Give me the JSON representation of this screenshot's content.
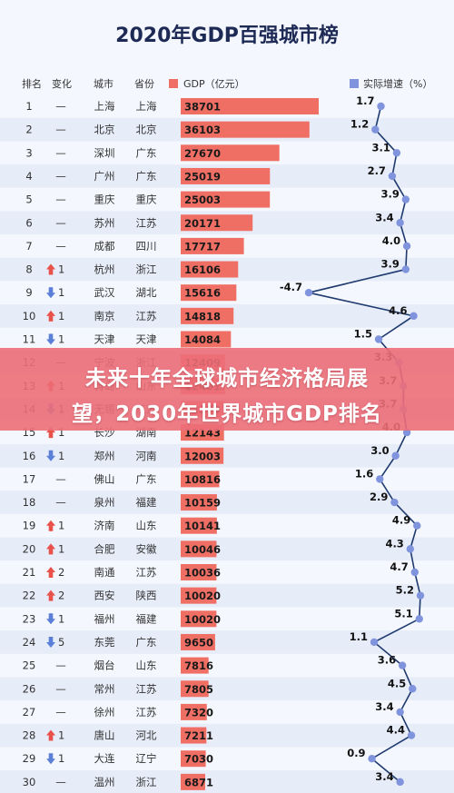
{
  "chart_data": {
    "type": "table",
    "title": "2020年GDP百强城市榜",
    "headers": {
      "rank": "排名",
      "change": "变化",
      "city": "城市",
      "province": "省份"
    },
    "legend": [
      {
        "name": "GDP（亿元）",
        "color": "#f06f64",
        "marker": "square"
      },
      {
        "name": "实际增速（%）",
        "color": "#8093dd",
        "marker": "square"
      }
    ],
    "rows": [
      {
        "rank": "1",
        "dir": "",
        "change": "—",
        "city": "上海",
        "province": "上海",
        "gdp": 38701,
        "growth": 1.7
      },
      {
        "rank": "2",
        "dir": "",
        "change": "—",
        "city": "北京",
        "province": "北京",
        "gdp": 36103,
        "growth": 1.2
      },
      {
        "rank": "3",
        "dir": "",
        "change": "—",
        "city": "深圳",
        "province": "广东",
        "gdp": 27670,
        "growth": 3.1
      },
      {
        "rank": "4",
        "dir": "",
        "change": "—",
        "city": "广州",
        "province": "广东",
        "gdp": 25019,
        "growth": 2.7
      },
      {
        "rank": "5",
        "dir": "",
        "change": "—",
        "city": "重庆",
        "province": "重庆",
        "gdp": 25003,
        "growth": 3.9
      },
      {
        "rank": "6",
        "dir": "",
        "change": "—",
        "city": "苏州",
        "province": "江苏",
        "gdp": 20171,
        "growth": 3.4
      },
      {
        "rank": "7",
        "dir": "",
        "change": "—",
        "city": "成都",
        "province": "四川",
        "gdp": 17717,
        "growth": 4.0
      },
      {
        "rank": "8",
        "dir": "up",
        "change": "1",
        "city": "杭州",
        "province": "浙江",
        "gdp": 16106,
        "growth": 3.9
      },
      {
        "rank": "9",
        "dir": "down",
        "change": "1",
        "city": "武汉",
        "province": "湖北",
        "gdp": 15616,
        "growth": -4.7
      },
      {
        "rank": "10",
        "dir": "up",
        "change": "1",
        "city": "南京",
        "province": "江苏",
        "gdp": 14818,
        "growth": 4.6
      },
      {
        "rank": "11",
        "dir": "down",
        "change": "1",
        "city": "天津",
        "province": "天津",
        "gdp": 14084,
        "growth": 1.5
      },
      {
        "rank": "12",
        "dir": "",
        "change": "—",
        "city": "宁波",
        "province": "浙江",
        "gdp": 12409,
        "growth": 3.3
      },
      {
        "rank": "13",
        "dir": "up",
        "change": "1",
        "city": "青岛",
        "province": "山东",
        "gdp": 12401,
        "growth": 3.7
      },
      {
        "rank": "14",
        "dir": "down",
        "change": "1",
        "city": "无锡",
        "province": "江苏",
        "gdp": 12370,
        "growth": 3.7
      },
      {
        "rank": "15",
        "dir": "up",
        "change": "1",
        "city": "长沙",
        "province": "湖南",
        "gdp": 12143,
        "growth": 4.0
      },
      {
        "rank": "16",
        "dir": "down",
        "change": "1",
        "city": "郑州",
        "province": "河南",
        "gdp": 12003,
        "growth": 3.0
      },
      {
        "rank": "17",
        "dir": "",
        "change": "—",
        "city": "佛山",
        "province": "广东",
        "gdp": 10816,
        "growth": 1.6
      },
      {
        "rank": "18",
        "dir": "",
        "change": "—",
        "city": "泉州",
        "province": "福建",
        "gdp": 10159,
        "growth": 2.9
      },
      {
        "rank": "19",
        "dir": "up",
        "change": "1",
        "city": "济南",
        "province": "山东",
        "gdp": 10141,
        "growth": 4.9
      },
      {
        "rank": "20",
        "dir": "up",
        "change": "1",
        "city": "合肥",
        "province": "安徽",
        "gdp": 10046,
        "growth": 4.3
      },
      {
        "rank": "21",
        "dir": "up",
        "change": "2",
        "city": "南通",
        "province": "江苏",
        "gdp": 10036,
        "growth": 4.7
      },
      {
        "rank": "22",
        "dir": "up",
        "change": "2",
        "city": "西安",
        "province": "陕西",
        "gdp": 10020,
        "growth": 5.2
      },
      {
        "rank": "23",
        "dir": "down",
        "change": "1",
        "city": "福州",
        "province": "福建",
        "gdp": 10020,
        "growth": 5.1
      },
      {
        "rank": "24",
        "dir": "down",
        "change": "5",
        "city": "东莞",
        "province": "广东",
        "gdp": 9650,
        "growth": 1.1
      },
      {
        "rank": "25",
        "dir": "",
        "change": "—",
        "city": "烟台",
        "province": "山东",
        "gdp": 7816,
        "growth": 3.6
      },
      {
        "rank": "26",
        "dir": "",
        "change": "—",
        "city": "常州",
        "province": "江苏",
        "gdp": 7805,
        "growth": 4.5
      },
      {
        "rank": "27",
        "dir": "",
        "change": "—",
        "city": "徐州",
        "province": "江苏",
        "gdp": 7320,
        "growth": 3.4
      },
      {
        "rank": "28",
        "dir": "up",
        "change": "1",
        "city": "唐山",
        "province": "河北",
        "gdp": 7211,
        "growth": 4.4
      },
      {
        "rank": "29",
        "dir": "down",
        "change": "1",
        "city": "大连",
        "province": "辽宁",
        "gdp": 7030,
        "growth": 0.9
      },
      {
        "rank": "30",
        "dir": "",
        "change": "—",
        "city": "温州",
        "province": "浙江",
        "gdp": 6871,
        "growth": 3.4
      }
    ],
    "gdp_range": [
      0,
      40000
    ],
    "growth_range": [
      -5,
      6
    ]
  },
  "colors": {
    "bar": "#f06f64",
    "line": "#1f3a6e",
    "dot": "#8093dd",
    "up": "#e9524a",
    "down": "#5b7fd6",
    "row_alt": "#e6ecf8"
  },
  "banner": {
    "line1": "未来十年全球城市经济格局展",
    "line2": "望，2030年世界城市GDP排名"
  }
}
